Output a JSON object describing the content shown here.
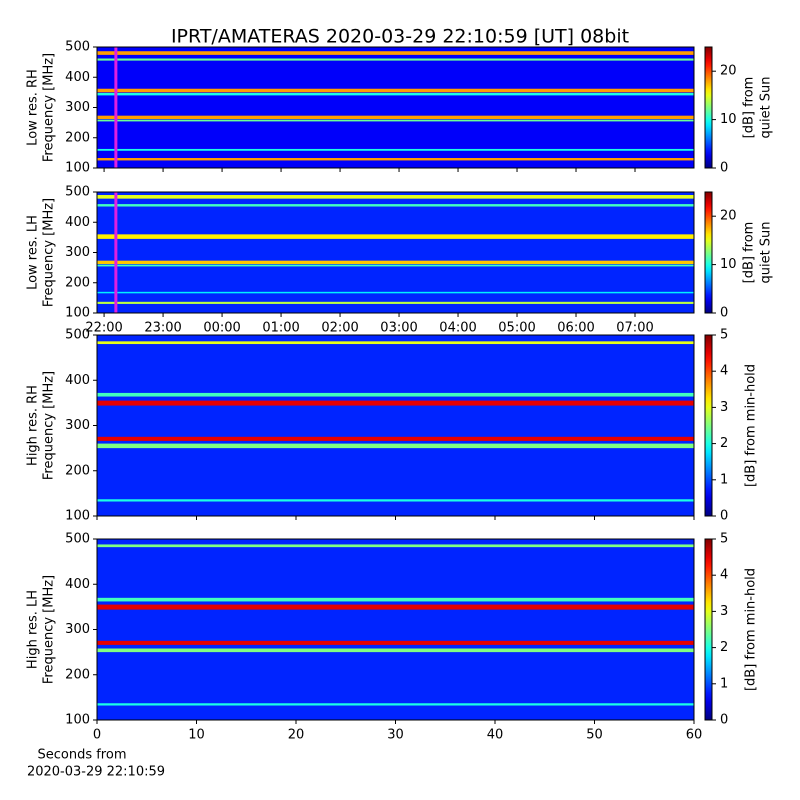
{
  "title": "IPRT/AMATERAS 2020-03-29 22:10:59 [UT]   08bit",
  "x_label": [
    "Seconds from",
    "2020-03-29 22:10:59"
  ],
  "chart_data": [
    {
      "type": "heatmap",
      "cmap": "jet",
      "y_label": [
        "Low res. RH",
        "Frequency [MHz]"
      ],
      "xlim": [
        21.88,
        32.0
      ],
      "xticks": [
        22,
        23,
        24,
        25,
        26,
        27,
        28,
        29,
        30,
        31
      ],
      "show_xtick_labels": false,
      "ylim": [
        100,
        500
      ],
      "yticks": [
        100,
        200,
        300,
        400,
        500
      ],
      "colorbar": {
        "label": [
          "[dB] from",
          "quiet Sun"
        ],
        "lim": [
          0,
          25
        ],
        "ticks": [
          0,
          10,
          20
        ]
      },
      "background": 3,
      "cursor": 22.2,
      "bands": {
        "y0": [
          474,
          455,
          350,
          340,
          262,
          254,
          157,
          125
        ],
        "y1": [
          486,
          462,
          362,
          348,
          273,
          260,
          163,
          133
        ],
        "values": [
          18,
          12,
          18,
          10,
          18,
          12,
          10,
          18
        ]
      }
    },
    {
      "type": "heatmap",
      "cmap": "jet",
      "y_label": [
        "Low res. LH",
        "Frequency [MHz]"
      ],
      "xlim": [
        21.88,
        32.0
      ],
      "xticks": [
        {
          "value": 22,
          "label": "22:00"
        },
        {
          "value": 23,
          "label": "23:00"
        },
        {
          "value": 24,
          "label": "00:00"
        },
        {
          "value": 25,
          "label": "01:00"
        },
        {
          "value": 26,
          "label": "02:00"
        },
        {
          "value": 27,
          "label": "03:00"
        },
        {
          "value": 28,
          "label": "04:00"
        },
        {
          "value": 29,
          "label": "05:00"
        },
        {
          "value": 30,
          "label": "06:00"
        },
        {
          "value": 31,
          "label": "07:00"
        }
      ],
      "show_xtick_labels": true,
      "ylim": [
        100,
        500
      ],
      "yticks": [
        100,
        200,
        300,
        400,
        500
      ],
      "colorbar": {
        "label": [
          "[dB] from",
          "quiet Sun"
        ],
        "lim": [
          0,
          25
        ],
        "ticks": [
          0,
          10,
          20
        ]
      },
      "background": 4,
      "cursor": 22.2,
      "bands": {
        "y0": [
          478,
          452,
          345,
          262,
          254,
          165,
          130
        ],
        "y1": [
          490,
          460,
          360,
          273,
          260,
          170,
          137
        ],
        "values": [
          15,
          11,
          16,
          17,
          11,
          9,
          14
        ]
      }
    },
    {
      "type": "heatmap",
      "cmap": "jet",
      "y_label": [
        "High res. RH",
        "Frequency [MHz]"
      ],
      "xlim": [
        0,
        60
      ],
      "xticks": [
        0,
        10,
        20,
        30,
        40,
        50,
        60
      ],
      "show_xtick_labels": false,
      "ylim": [
        100,
        500
      ],
      "yticks": [
        100,
        200,
        300,
        400,
        500
      ],
      "colorbar": {
        "label": [
          "[dB] from min-hold"
        ],
        "lim": [
          0,
          5
        ],
        "ticks": [
          0,
          1,
          2,
          3,
          4,
          5
        ]
      },
      "background": 0.8,
      "bands": {
        "y0": [
          480,
          364,
          344,
          266,
          250,
          132
        ],
        "y1": [
          486,
          372,
          355,
          275,
          260,
          137
        ],
        "values": [
          3,
          2.2,
          4.5,
          4.5,
          2.5,
          2
        ]
      }
    },
    {
      "type": "heatmap",
      "cmap": "jet",
      "y_label": [
        "High res. LH",
        "Frequency [MHz]"
      ],
      "xlim": [
        0,
        60
      ],
      "xticks": [
        0,
        10,
        20,
        30,
        40,
        50,
        60
      ],
      "show_xtick_labels": true,
      "ylim": [
        100,
        500
      ],
      "yticks": [
        100,
        200,
        300,
        400,
        500
      ],
      "colorbar": {
        "label": [
          "[dB] from min-hold"
        ],
        "lim": [
          0,
          5
        ],
        "ticks": [
          0,
          1,
          2,
          3,
          4,
          5
        ]
      },
      "background": 0.8,
      "bands": {
        "y0": [
          482,
          362,
          344,
          266,
          250,
          132
        ],
        "y1": [
          488,
          370,
          355,
          275,
          258,
          137
        ],
        "values": [
          2.5,
          2.2,
          4.5,
          4.5,
          2.5,
          2
        ]
      }
    }
  ]
}
